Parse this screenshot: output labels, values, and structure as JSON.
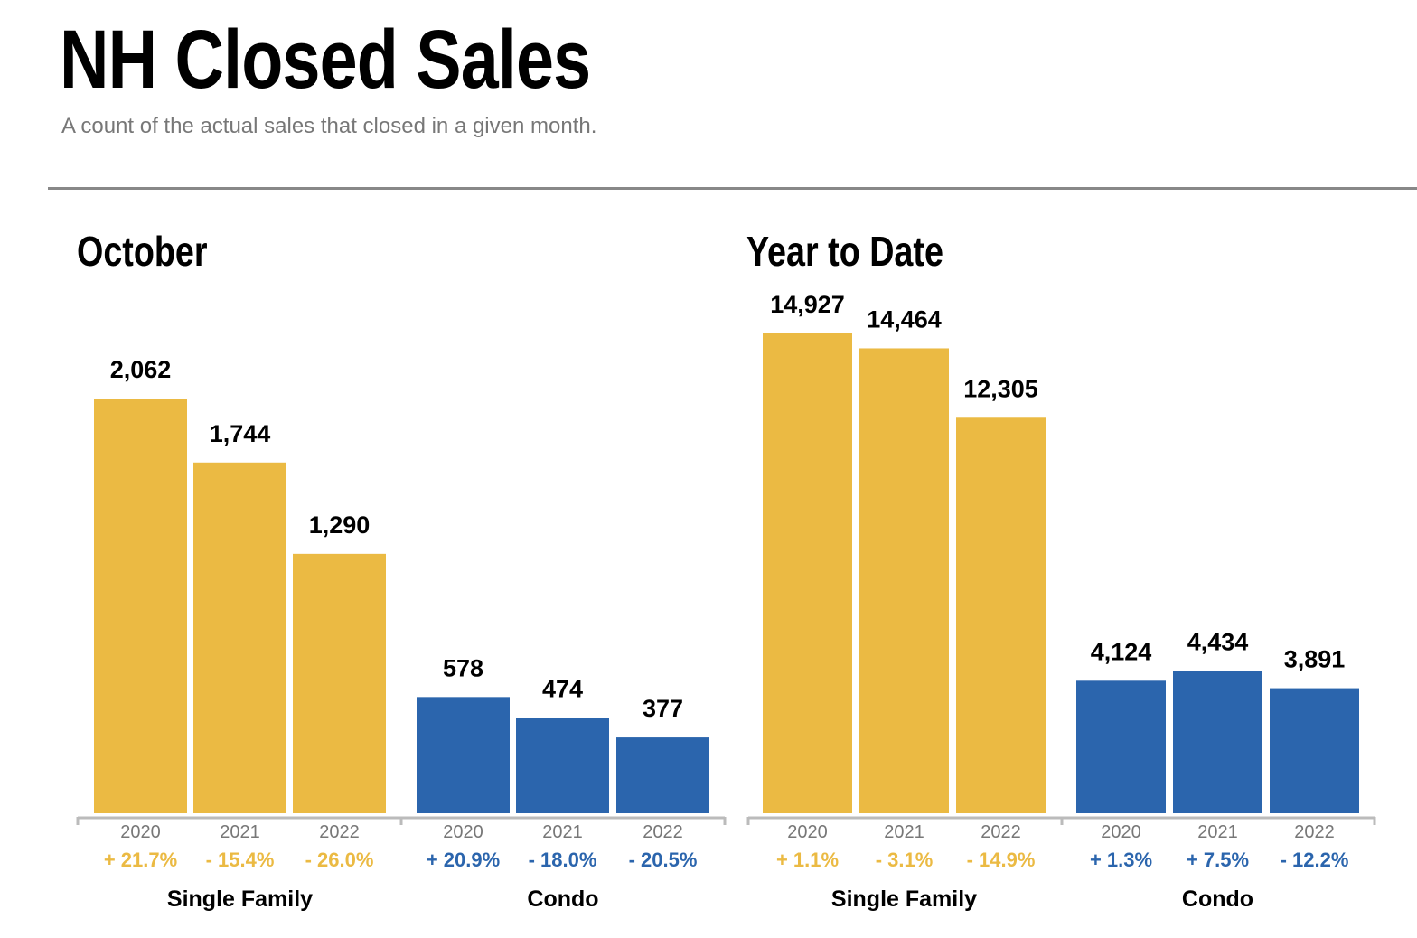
{
  "header": {
    "title": "NH Closed Sales",
    "subtitle": "A count of the actual sales that closed in a given month."
  },
  "colors": {
    "single_family": "#EBBA43",
    "condo": "#2B65AD",
    "axis": "#BBBBBB"
  },
  "chart_data": [
    {
      "type": "bar",
      "title": "October",
      "groups": [
        {
          "label": "Single Family",
          "color_key": "single_family",
          "categories": [
            "2020",
            "2021",
            "2022"
          ],
          "values": [
            2062,
            1744,
            1290
          ],
          "value_labels": [
            "2,062",
            "1,744",
            "1,290"
          ],
          "changes": [
            "+ 21.7%",
            "- 15.4%",
            "- 26.0%"
          ]
        },
        {
          "label": "Condo",
          "color_key": "condo",
          "categories": [
            "2020",
            "2021",
            "2022"
          ],
          "values": [
            578,
            474,
            377
          ],
          "value_labels": [
            "578",
            "474",
            "377"
          ],
          "changes": [
            "+ 20.9%",
            "- 18.0%",
            "- 20.5%"
          ]
        }
      ]
    },
    {
      "type": "bar",
      "title": "Year to Date",
      "groups": [
        {
          "label": "Single Family",
          "color_key": "single_family",
          "categories": [
            "2020",
            "2021",
            "2022"
          ],
          "values": [
            14927,
            14464,
            12305
          ],
          "value_labels": [
            "14,927",
            "14,464",
            "12,305"
          ],
          "changes": [
            "+ 1.1%",
            "- 3.1%",
            "- 14.9%"
          ]
        },
        {
          "label": "Condo",
          "color_key": "condo",
          "categories": [
            "2020",
            "2021",
            "2022"
          ],
          "values": [
            4124,
            4434,
            3891
          ],
          "value_labels": [
            "4,124",
            "4,434",
            "3,891"
          ],
          "changes": [
            "+ 1.3%",
            "+ 7.5%",
            "- 12.2%"
          ]
        }
      ]
    }
  ]
}
